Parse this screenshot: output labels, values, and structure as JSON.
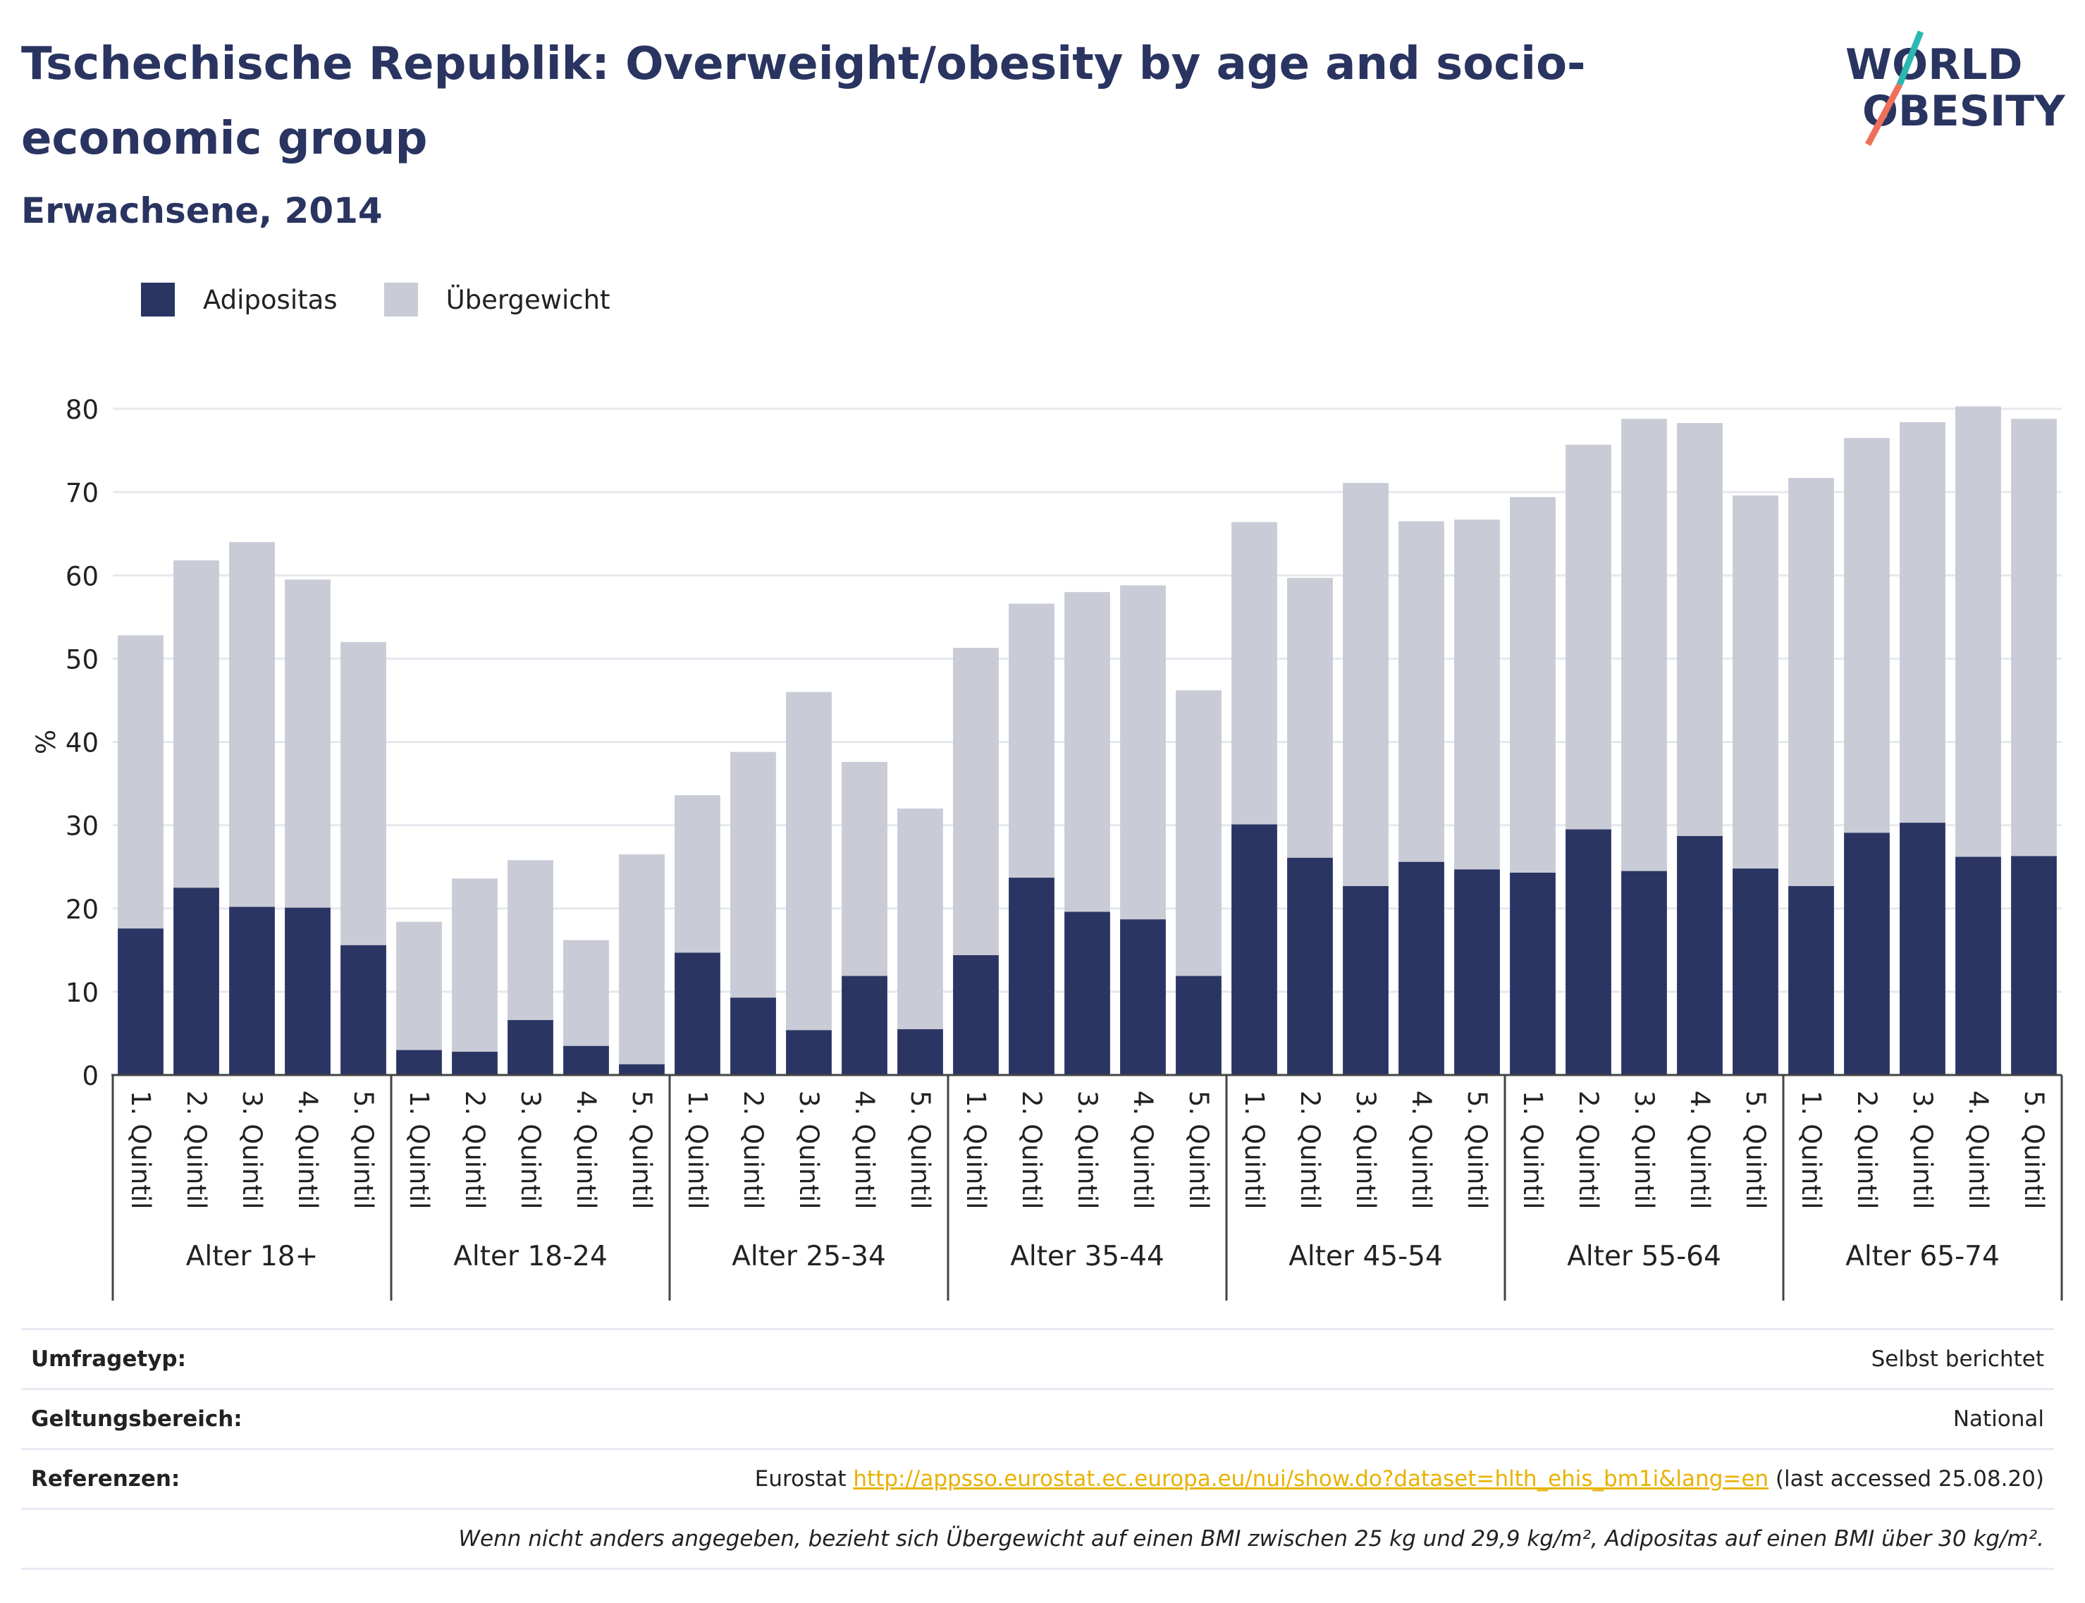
{
  "header": {
    "title": "Tschechische Republik: Overweight/obesity by age and socio-economic group",
    "subtitle": "Erwachsene, 2014"
  },
  "logo": {
    "line1": "WORLD",
    "line2": "OBESITY",
    "icon": "world-obesity-logo"
  },
  "colors": {
    "adipositas": "#2a3563",
    "uebergewicht": "#c9cbd6",
    "title": "#2a3460",
    "link": "#e8b200"
  },
  "legend": {
    "adipositas": "Adipositas",
    "uebergewicht": "Übergewicht",
    "position": "top-left"
  },
  "chart_data": {
    "type": "bar",
    "stacked": true,
    "ylabel": "%",
    "ylim": [
      0,
      80
    ],
    "yticks": [
      0,
      10,
      20,
      30,
      40,
      50,
      60,
      70,
      80
    ],
    "grid": true,
    "groups": [
      "Alter 18+",
      "Alter 18-24",
      "Alter 25-34",
      "Alter 35-44",
      "Alter 45-54",
      "Alter 55-64",
      "Alter 65-74"
    ],
    "categories": [
      "1. Quintil",
      "2. Quintil",
      "3. Quintil",
      "4. Quintil",
      "5. Quintil"
    ],
    "series": [
      {
        "name": "Adipositas",
        "values": [
          [
            17.6,
            22.5,
            20.2,
            20.1,
            15.6
          ],
          [
            3.0,
            2.8,
            6.6,
            3.5,
            1.3
          ],
          [
            14.7,
            9.3,
            5.4,
            11.9,
            5.5
          ],
          [
            14.4,
            23.7,
            19.6,
            18.7,
            11.9
          ],
          [
            30.1,
            26.1,
            22.7,
            25.6,
            24.7
          ],
          [
            24.3,
            29.5,
            24.5,
            28.7,
            24.8
          ],
          [
            22.7,
            29.1,
            30.3,
            26.2,
            26.3
          ]
        ]
      },
      {
        "name": "Übergewicht",
        "values": [
          [
            35.2,
            39.3,
            43.8,
            39.4,
            36.4
          ],
          [
            15.4,
            20.8,
            19.2,
            12.7,
            25.2
          ],
          [
            18.9,
            29.5,
            40.6,
            25.7,
            26.5
          ],
          [
            36.9,
            32.9,
            38.4,
            40.1,
            34.3
          ],
          [
            36.3,
            33.6,
            48.4,
            40.9,
            42.0
          ],
          [
            45.1,
            46.2,
            54.3,
            49.6,
            44.8
          ],
          [
            49.0,
            47.4,
            48.1,
            54.1,
            52.5
          ]
        ]
      }
    ]
  },
  "meta": {
    "survey_label": "Umfragetyp:",
    "survey_value": "Selbst berichtet",
    "scope_label": "Geltungsbereich:",
    "scope_value": "National",
    "ref_label": "Referenzen:",
    "ref_source": "Eurostat",
    "ref_url": "http://appsso.eurostat.ec.europa.eu/nui/show.do?dataset=hlth_ehis_bm1i&lang=en",
    "ref_accessed": "(last accessed 25.08.20)",
    "note": "Wenn nicht anders angegeben, bezieht sich Übergewicht auf einen BMI zwischen 25 kg und 29,9 kg/m², Adipositas auf einen BMI über 30 kg/m²."
  }
}
